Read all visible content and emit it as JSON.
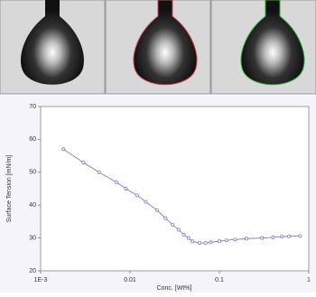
{
  "chart_data": {
    "type": "line",
    "x_label": "Conc. [Wt%]",
    "y_label": "Surface Tension [mN/m]",
    "x": [
      0.0018,
      0.003,
      0.0045,
      0.007,
      0.009,
      0.012,
      0.015,
      0.02,
      0.025,
      0.03,
      0.035,
      0.04,
      0.045,
      0.05,
      0.06,
      0.07,
      0.08,
      0.1,
      0.12,
      0.15,
      0.2,
      0.3,
      0.4,
      0.5,
      0.6,
      0.8
    ],
    "values": [
      57,
      53,
      50,
      47,
      45,
      43,
      41,
      38.5,
      36,
      34,
      32.5,
      31,
      30,
      29,
      28.5,
      28.5,
      28.7,
      29,
      29.3,
      29.5,
      29.8,
      30,
      30.2,
      30.4,
      30.5,
      30.6
    ],
    "color": "#6a6ad0",
    "xscale": "log",
    "xlim": [
      0.001,
      1
    ],
    "xticks": [
      {
        "value": 0.001,
        "label": "1E-3"
      },
      0.01,
      0.1,
      1
    ],
    "ylim": [
      20,
      70
    ],
    "yticks": [
      20,
      30,
      40,
      50,
      60,
      70
    ]
  }
}
